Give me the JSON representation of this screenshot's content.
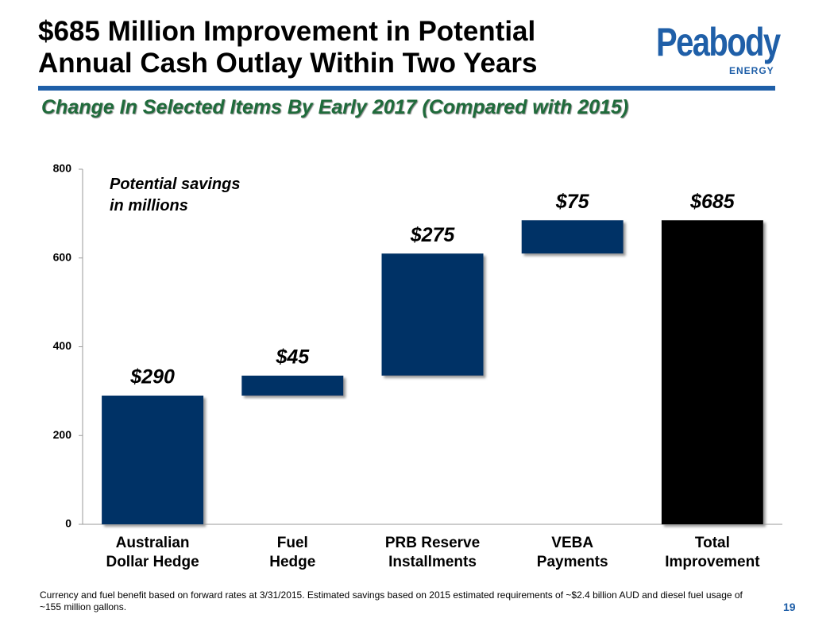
{
  "header": {
    "title": "$685 Million Improvement in Potential\nAnnual Cash Outlay Within Two Years",
    "logo_name": "Peabody",
    "logo_tag": "ENERGY",
    "subtitle": "Change In Selected Items By Early 2017 (Compared with 2015)"
  },
  "chart_data": {
    "type": "waterfall",
    "annotation": "Potential savings\nin millions",
    "categories": [
      "Australian\nDollar Hedge",
      "Fuel\nHedge",
      "PRB Reserve\nInstallments",
      "VEBA\nPayments",
      "Total\nImprovement"
    ],
    "values": [
      290,
      45,
      275,
      75,
      685
    ],
    "value_labels": [
      "$290",
      "$45",
      "$275",
      "$75",
      "$685"
    ],
    "totals": [
      false,
      false,
      false,
      false,
      true
    ],
    "colors": [
      "#003366",
      "#003366",
      "#003366",
      "#003366",
      "#000000"
    ],
    "ylim": [
      0,
      800
    ],
    "yticks": [
      0,
      200,
      400,
      600,
      800
    ]
  },
  "footer": {
    "note": "Currency and fuel benefit based on forward rates at 3/31/2015.  Estimated savings based on 2015 estimated requirements of ~$2.4 billion AUD and diesel fuel usage of ~155 million gallons.",
    "page_number": "19"
  }
}
